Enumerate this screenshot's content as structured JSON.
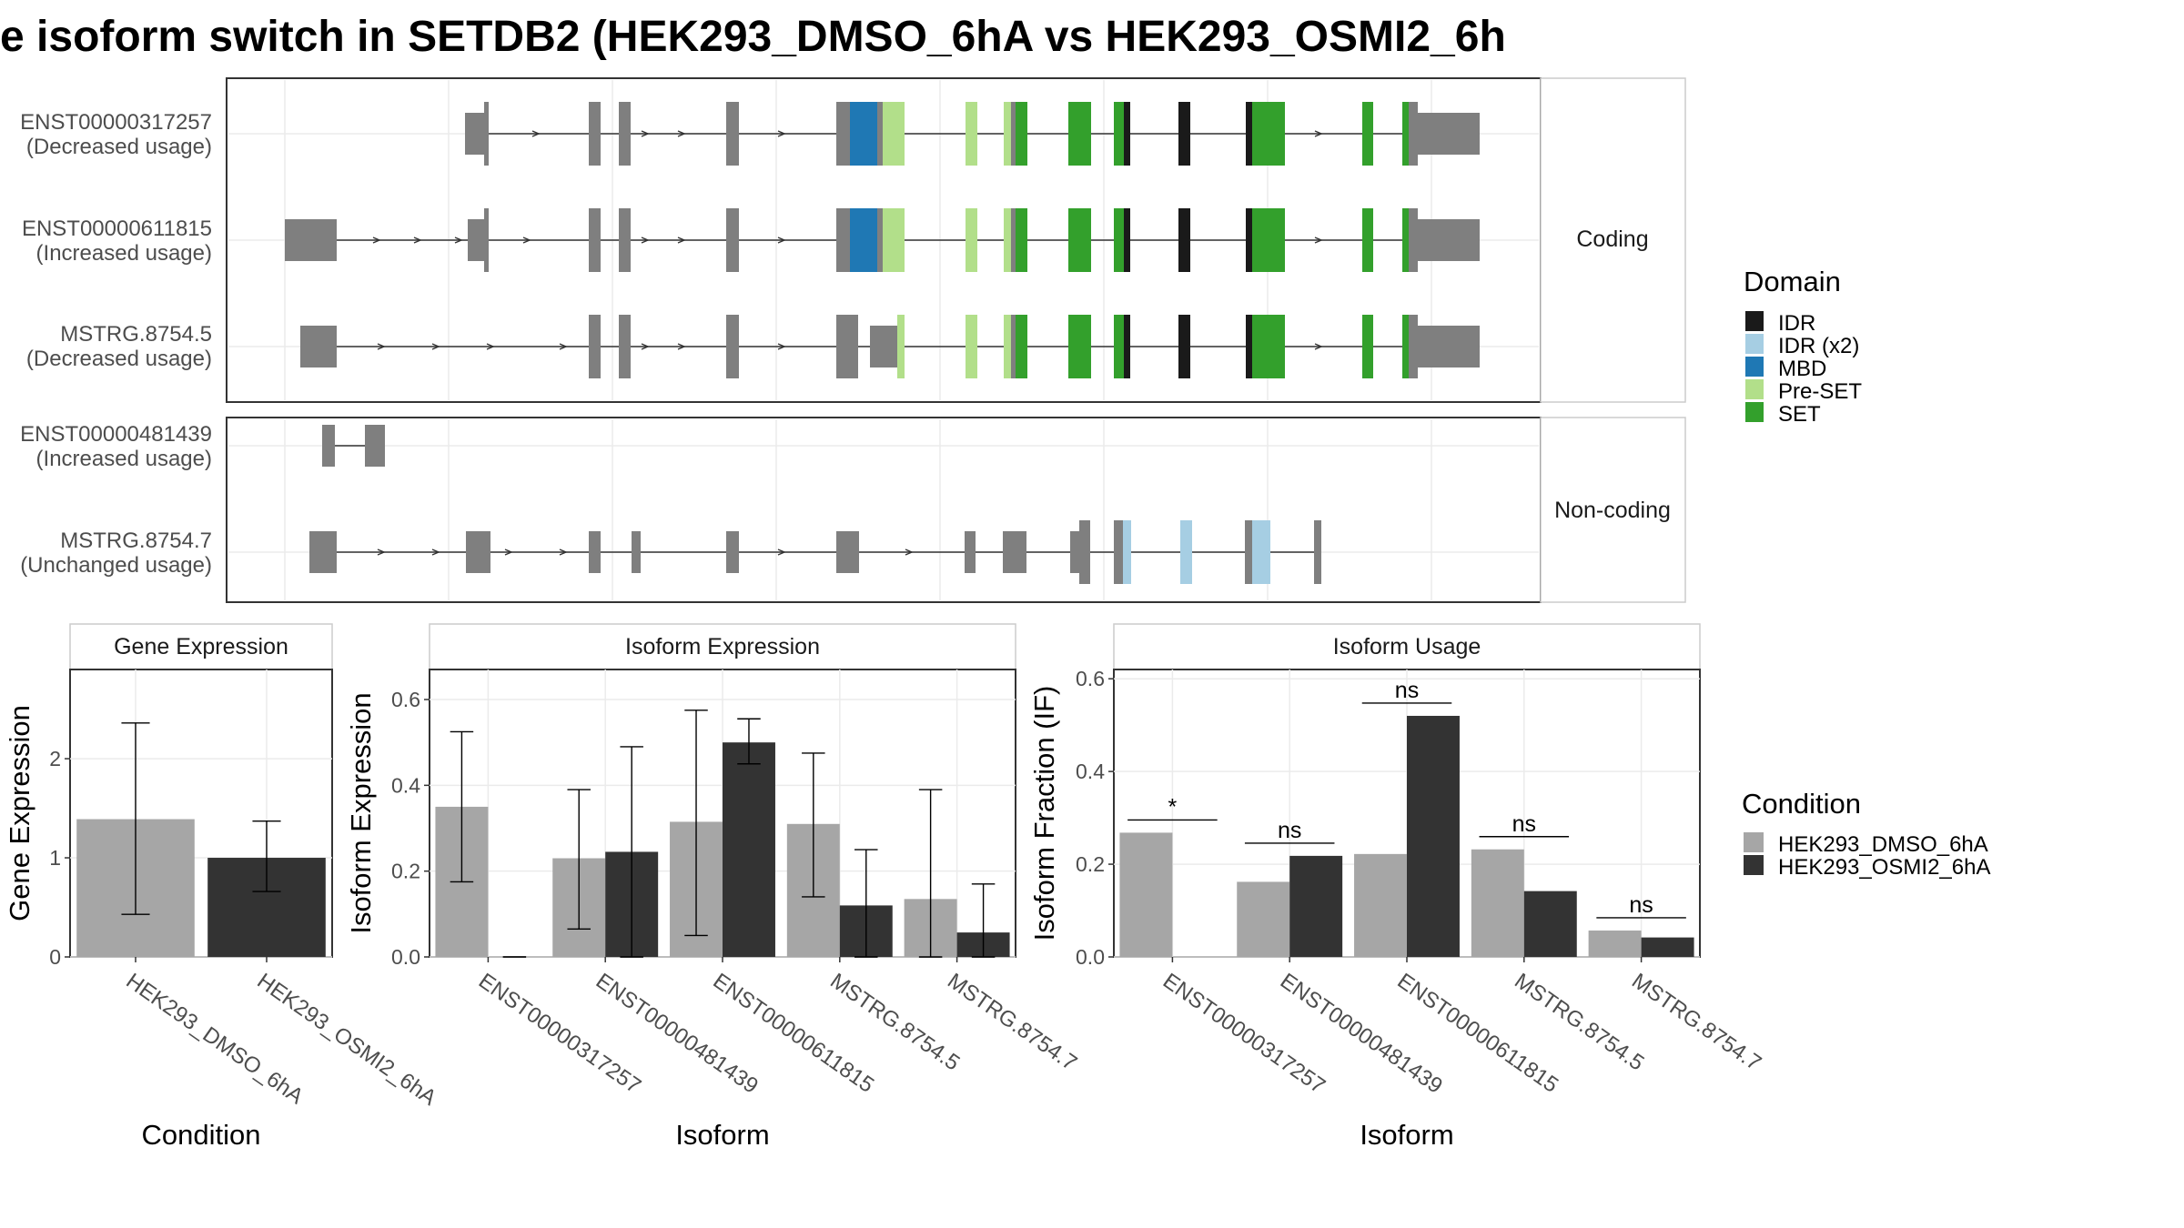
{
  "title": "e isoform switch in SETDB2 (HEK293_DMSO_6hA vs HEK293_OSMI2_6h",
  "colors": {
    "IDR": "#1a1a1a",
    "IDR (x2)": "#a6cee3",
    "MBD": "#1f78b4",
    "Pre-SET": "#b2df8a",
    "SET": "#33a02c",
    "exon": "#7f7f7f",
    "HEK293_DMSO_6hA": "#a6a6a6",
    "HEK293_OSMI2_6hA": "#333333"
  },
  "structure": {
    "coding_label": "Coding",
    "noncoding_label": "Non-coding",
    "coding": [
      {
        "id": "ENST00000317257",
        "usage": "(Decreased usage)"
      },
      {
        "id": "ENST00000611815",
        "usage": "(Increased usage)"
      },
      {
        "id": "MSTRG.8754.5",
        "usage": "(Decreased usage)"
      }
    ],
    "noncoding": [
      {
        "id": "ENST00000481439",
        "usage": "(Increased usage)"
      },
      {
        "id": "MSTRG.8754.7",
        "usage": "(Unchanged usage)"
      }
    ]
  },
  "domain_legend": {
    "title": "Domain",
    "items": [
      "IDR",
      "IDR (x2)",
      "MBD",
      "Pre-SET",
      "SET"
    ]
  },
  "condition_legend": {
    "title": "Condition",
    "items": [
      "HEK293_DMSO_6hA",
      "HEK293_OSMI2_6hA"
    ]
  },
  "chart_data": [
    {
      "type": "bar",
      "title": "Gene Expression",
      "xlabel": "Condition",
      "ylabel": "Gene Expression",
      "categories": [
        "HEK293_DMSO_6hA",
        "HEK293_OSMI2_6hA"
      ],
      "values": [
        1.39,
        1.0
      ],
      "error": [
        [
          0.43,
          2.36
        ],
        [
          0.66,
          1.37
        ]
      ],
      "ylim": [
        0,
        2.9
      ],
      "yticks": [
        0,
        1,
        2
      ]
    },
    {
      "type": "bar",
      "title": "Isoform Expression",
      "xlabel": "Isoform",
      "ylabel": "Isoform Expression",
      "categories": [
        "ENST00000317257",
        "ENST00000481439",
        "ENST00000611815",
        "MSTRG.8754.5",
        "MSTRG.8754.7"
      ],
      "series": [
        {
          "name": "HEK293_DMSO_6hA",
          "values": [
            0.35,
            0.23,
            0.315,
            0.31,
            0.135
          ],
          "error": [
            [
              0.175,
              0.525
            ],
            [
              0.065,
              0.39
            ],
            [
              0.05,
              0.575
            ],
            [
              0.14,
              0.475
            ],
            [
              0.0,
              0.39
            ]
          ]
        },
        {
          "name": "HEK293_OSMI2_6hA",
          "values": [
            0.0,
            0.245,
            0.5,
            0.12,
            0.057
          ],
          "error": [
            [
              0.0,
              0.0
            ],
            [
              0.0,
              0.49
            ],
            [
              0.45,
              0.555
            ],
            [
              0.0,
              0.25
            ],
            [
              0.0,
              0.17
            ]
          ]
        }
      ],
      "ylim": [
        0,
        0.67
      ],
      "yticks": [
        0.0,
        0.2,
        0.4,
        0.6
      ]
    },
    {
      "type": "bar",
      "title": "Isoform Usage",
      "xlabel": "Isoform",
      "ylabel": "Isoform Fraction (IF)",
      "categories": [
        "ENST00000317257",
        "ENST00000481439",
        "ENST00000611815",
        "MSTRG.8754.5",
        "MSTRG.8754.7"
      ],
      "series": [
        {
          "name": "HEK293_DMSO_6hA",
          "values": [
            0.268,
            0.162,
            0.222,
            0.232,
            0.057
          ]
        },
        {
          "name": "HEK293_OSMI2_6hA",
          "values": [
            0.0,
            0.218,
            0.52,
            0.142,
            0.042
          ]
        }
      ],
      "significance": [
        "*",
        "ns",
        "ns",
        "ns",
        "ns"
      ],
      "ylim": [
        0,
        0.62
      ],
      "yticks": [
        0.0,
        0.2,
        0.4,
        0.6
      ]
    }
  ]
}
